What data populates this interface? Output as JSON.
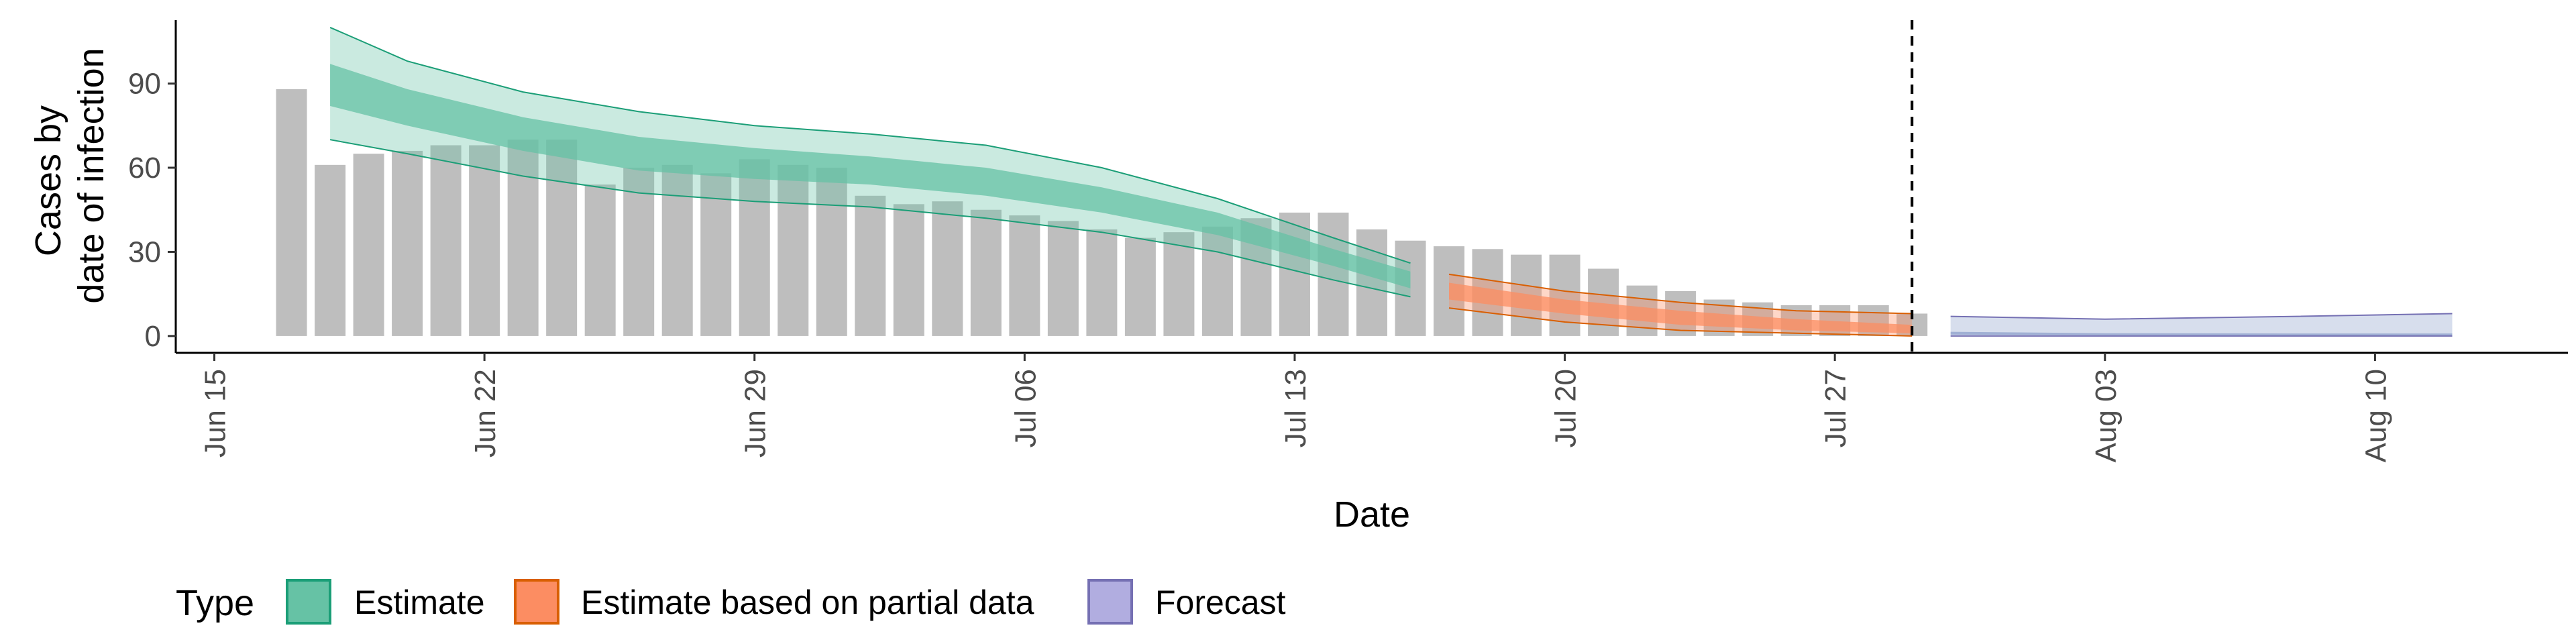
{
  "chart_data": {
    "type": "bar",
    "xlabel": "Date",
    "ylabel": [
      "Cases by",
      "date of infection"
    ],
    "ylim": [
      -6,
      115
    ],
    "yticks": [
      0,
      30,
      60,
      90
    ],
    "xlim": [
      "2020-06-14",
      "2020-08-15"
    ],
    "xticks": [
      {
        "date": "2020-06-15",
        "label": "Jun 15"
      },
      {
        "date": "2020-06-22",
        "label": "Jun 22"
      },
      {
        "date": "2020-06-29",
        "label": "Jun 29"
      },
      {
        "date": "2020-07-06",
        "label": "Jul 06"
      },
      {
        "date": "2020-07-13",
        "label": "Jul 13"
      },
      {
        "date": "2020-07-20",
        "label": "Jul 20"
      },
      {
        "date": "2020-07-27",
        "label": "Jul 27"
      },
      {
        "date": "2020-08-03",
        "label": "Aug 03"
      },
      {
        "date": "2020-08-10",
        "label": "Aug 10"
      }
    ],
    "forecast_date": "2020-07-29",
    "bars": {
      "start_date": "2020-06-17",
      "values": [
        88,
        61,
        65,
        66,
        68,
        68,
        70,
        70,
        54,
        60,
        61,
        58,
        63,
        61,
        60,
        50,
        47,
        48,
        45,
        43,
        41,
        38,
        35,
        37,
        39,
        42,
        44,
        44,
        38,
        34,
        32,
        31,
        29,
        29,
        24,
        18,
        16,
        13,
        12,
        11,
        11,
        11,
        8
      ],
      "color": "#bebebe"
    },
    "series": [
      {
        "name": "Estimate",
        "color": "#1b9e77",
        "fill": "#66c2a5",
        "points": [
          {
            "date": "2020-06-18",
            "outer": [
              70,
              110
            ],
            "inner": [
              82,
              97
            ]
          },
          {
            "date": "2020-06-20",
            "outer": [
              65,
              98
            ],
            "inner": [
              75,
              88
            ]
          },
          {
            "date": "2020-06-23",
            "outer": [
              57,
              87
            ],
            "inner": [
              66,
              78
            ]
          },
          {
            "date": "2020-06-26",
            "outer": [
              51,
              80
            ],
            "inner": [
              59,
              71
            ]
          },
          {
            "date": "2020-06-29",
            "outer": [
              48,
              75
            ],
            "inner": [
              56,
              67
            ]
          },
          {
            "date": "2020-07-02",
            "outer": [
              46,
              72
            ],
            "inner": [
              54,
              64
            ]
          },
          {
            "date": "2020-07-05",
            "outer": [
              42,
              68
            ],
            "inner": [
              50,
              60
            ]
          },
          {
            "date": "2020-07-08",
            "outer": [
              37,
              60
            ],
            "inner": [
              44,
              53
            ]
          },
          {
            "date": "2020-07-11",
            "outer": [
              30,
              49
            ],
            "inner": [
              36,
              44
            ]
          },
          {
            "date": "2020-07-14",
            "outer": [
              20,
              35
            ],
            "inner": [
              25,
              31
            ]
          },
          {
            "date": "2020-07-16",
            "outer": [
              14,
              26
            ],
            "inner": [
              17,
              23
            ]
          }
        ]
      },
      {
        "name": "Estimate based on partial data",
        "color": "#d95f02",
        "fill": "#fc8d62",
        "points": [
          {
            "date": "2020-07-17",
            "outer": [
              10,
              22
            ],
            "inner": [
              13,
              19
            ]
          },
          {
            "date": "2020-07-20",
            "outer": [
              5,
              16
            ],
            "inner": [
              8,
              13
            ]
          },
          {
            "date": "2020-07-23",
            "outer": [
              2,
              12
            ],
            "inner": [
              4,
              9
            ]
          },
          {
            "date": "2020-07-26",
            "outer": [
              1,
              9
            ],
            "inner": [
              2,
              6
            ]
          },
          {
            "date": "2020-07-29",
            "outer": [
              0,
              8
            ],
            "inner": [
              1,
              4
            ]
          }
        ]
      },
      {
        "name": "Forecast",
        "color": "#7570b3",
        "fill": "#8da0cb",
        "points": [
          {
            "date": "2020-07-30",
            "outer": [
              0,
              7
            ],
            "inner": [
              0.5,
              1.5
            ]
          },
          {
            "date": "2020-08-03",
            "outer": [
              0,
              6
            ],
            "inner": [
              0.3,
              1.0
            ]
          },
          {
            "date": "2020-08-08",
            "outer": [
              0,
              7
            ],
            "inner": [
              0.2,
              0.9
            ]
          },
          {
            "date": "2020-08-12",
            "outer": [
              0,
              8
            ],
            "inner": [
              0.2,
              0.9
            ]
          }
        ]
      }
    ],
    "legend": {
      "title": "Type",
      "position": "bottom-left",
      "entries": [
        "Estimate",
        "Estimate based on partial data",
        "Forecast"
      ]
    },
    "grid": false
  }
}
